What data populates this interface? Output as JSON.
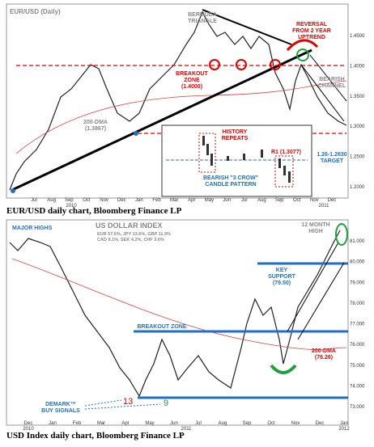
{
  "top": {
    "title": "EUR/USD (Daily)",
    "annotations": {
      "bermuda": [
        "BERMUDA",
        "TRIANGLE"
      ],
      "reversal": [
        "REVERSAL",
        "FROM 2 YEAR",
        "UPTREND"
      ],
      "breakout": [
        "BREAKOUT",
        "ZONE",
        "(1.4000)"
      ],
      "channel": [
        "BEARISH",
        "CHANNEL"
      ],
      "dma": [
        "200-DMA",
        "(1.3867)"
      ],
      "target": [
        "1.26-1.2630",
        "TARGET"
      ]
    },
    "inset": {
      "history": [
        "HISTORY",
        "REPEATS"
      ],
      "r1": "R1 (1.3077)",
      "crow": [
        "BEARISH \"3 CROW\"",
        "CANDLE PATTERN"
      ]
    },
    "yaxis": [
      "1.4500",
      "1.4000",
      "1.3500",
      "1.3000",
      "1.2500",
      "1.2000"
    ],
    "xaxis": [
      "Jul",
      "Aug",
      "Sep",
      "Oct",
      "Nov",
      "Dec",
      "Jan",
      "Feb",
      "Mar",
      "Apr",
      "May",
      "Jun",
      "Jul",
      "Aug",
      "Sep",
      "Oct",
      "Nov",
      "Dec"
    ],
    "years": [
      "2010",
      "2011"
    ]
  },
  "caption1": "EUR/USD daily chart, Bloomberg Finance LP",
  "bottom": {
    "title": "US DOLLAR INDEX",
    "weights": [
      "EUR 57.6%, JPY 13.6%, GBP 11.9%",
      "CAD 9.1%, SEK 4.2%, CHF 3.6%"
    ],
    "annotations": {
      "highs": "MAJOR HIGHS",
      "month": [
        "12 MONTH",
        "HIGH"
      ],
      "support": [
        "KEY",
        "SUPPORT",
        "(79.50)"
      ],
      "breakout": "BREAKOUT ZONE",
      "dma": [
        "200-DMA",
        "(76.26)"
      ],
      "demark": [
        "DEMARK™",
        "BUY SIGNALS"
      ],
      "n13": "13",
      "n9": "9"
    },
    "yaxis": [
      "81.000",
      "80.000",
      "79.000",
      "78.000",
      "77.000",
      "76.000",
      "75.000",
      "74.000",
      "73.000"
    ],
    "xaxis": [
      "Dec",
      "Jan",
      "Feb",
      "Mar",
      "Apr",
      "May",
      "Jun",
      "Jul",
      "Aug",
      "Sep",
      "Oct",
      "Nov",
      "Dec",
      "Jan"
    ],
    "years": [
      "2010",
      "2011",
      "2012"
    ]
  },
  "caption2": "USD Index daily chart, Bloomberg Finance LP"
}
